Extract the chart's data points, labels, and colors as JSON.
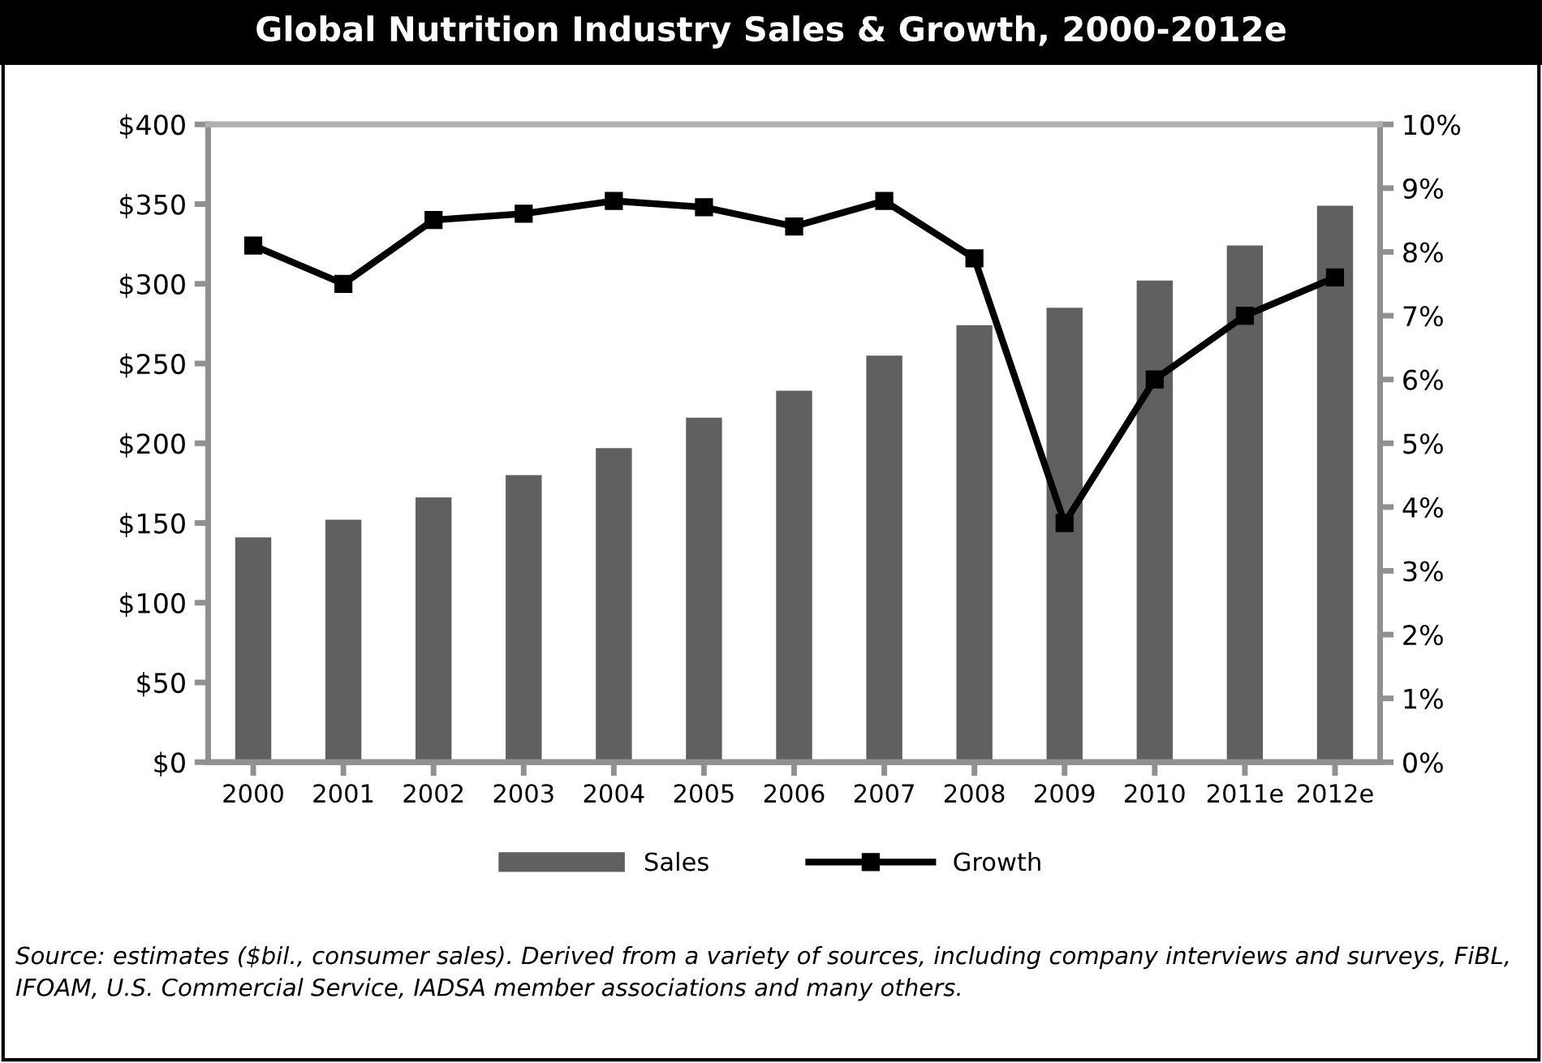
{
  "chart_data": {
    "type": "bar",
    "title": "Global Nutrition Industry Sales & Growth, 2000-2012e",
    "categories": [
      "2000",
      "2001",
      "2002",
      "2003",
      "2004",
      "2005",
      "2006",
      "2007",
      "2008",
      "2009",
      "2010",
      "2011e",
      "2012e"
    ],
    "series": [
      {
        "name": "Sales",
        "color": "#606060",
        "values": [
          141,
          152,
          166,
          180,
          197,
          216,
          233,
          255,
          274,
          285,
          302,
          324,
          349
        ]
      },
      {
        "name": "Growth",
        "type": "line",
        "axis": "y2",
        "color": "#000000",
        "values": [
          8.1,
          7.5,
          8.5,
          8.6,
          8.8,
          8.7,
          8.4,
          8.8,
          7.9,
          3.75,
          6.0,
          7.0,
          7.6
        ]
      }
    ],
    "ylim": [
      0,
      400
    ],
    "yticks": [
      {
        "value": 0,
        "label": "$0"
      },
      {
        "value": 50,
        "label": "$50"
      },
      {
        "value": 100,
        "label": "$100"
      },
      {
        "value": 150,
        "label": "$150"
      },
      {
        "value": 200,
        "label": "$200"
      },
      {
        "value": 250,
        "label": "$250"
      },
      {
        "value": 300,
        "label": "$300"
      },
      {
        "value": 350,
        "label": "$350"
      },
      {
        "value": 400,
        "label": "$400"
      }
    ],
    "y2lim": [
      0,
      10
    ],
    "y2ticks": [
      {
        "value": 0,
        "label": "0%"
      },
      {
        "value": 1,
        "label": "1%"
      },
      {
        "value": 2,
        "label": "2%"
      },
      {
        "value": 3,
        "label": "3%"
      },
      {
        "value": 4,
        "label": "4%"
      },
      {
        "value": 5,
        "label": "5%"
      },
      {
        "value": 6,
        "label": "6%"
      },
      {
        "value": 7,
        "label": "7%"
      },
      {
        "value": 8,
        "label": "8%"
      },
      {
        "value": 9,
        "label": "9%"
      },
      {
        "value": 10,
        "label": "10%"
      }
    ],
    "marker": "square",
    "line_style": "solid",
    "grid": false,
    "legend": "bottom",
    "annotations": [
      "Source: estimates ($bil., consumer sales). Derived from a variety of sources, including company interviews and surveys, FiBL, IFOAM, U.S. Commercial Service, IADSA member associations and many others."
    ]
  }
}
